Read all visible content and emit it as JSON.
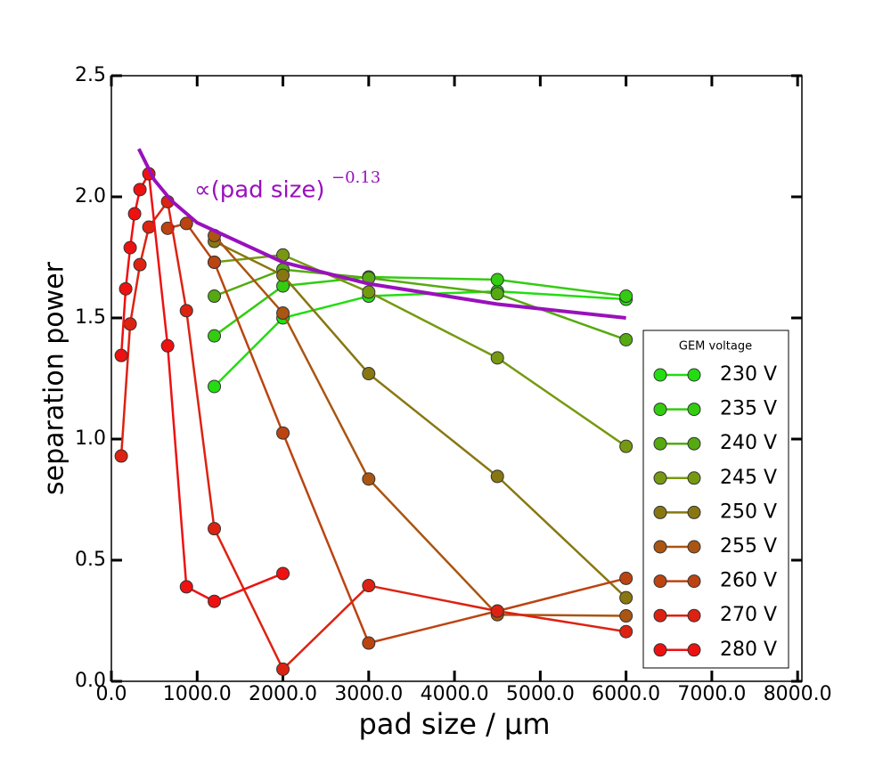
{
  "chart_data": {
    "type": "line",
    "xlabel": "pad size / μm",
    "ylabel": "separation power",
    "xlim": [
      0,
      8050
    ],
    "ylim": [
      0,
      2.5
    ],
    "xticks": [
      {
        "value": 0,
        "label": "0.0"
      },
      {
        "value": 1000,
        "label": "1000.0"
      },
      {
        "value": 2000,
        "label": "2000.0"
      },
      {
        "value": 3000,
        "label": "3000.0"
      },
      {
        "value": 4000,
        "label": "4000.0"
      },
      {
        "value": 5000,
        "label": "5000.0"
      },
      {
        "value": 6000,
        "label": "6000.0"
      },
      {
        "value": 7000,
        "label": "7000.0"
      },
      {
        "value": 8000,
        "label": "8000.0"
      }
    ],
    "yticks": [
      {
        "value": 0,
        "label": "0.0"
      },
      0.5,
      {
        "value": 1,
        "label": "1.0"
      },
      1.5,
      {
        "value": 2,
        "label": "2.0"
      },
      2.5
    ],
    "legend_title": "GEM voltage",
    "legend_position": "lower right",
    "series": [
      {
        "name": "230 V",
        "color": "#22dd11",
        "x": [
          1200,
          2000,
          3000,
          4500,
          6000
        ],
        "values": [
          1.217,
          1.5,
          1.59,
          1.61,
          1.577
        ]
      },
      {
        "name": "235 V",
        "color": "#33cc11",
        "x": [
          1200,
          2000,
          3000,
          4500,
          6000
        ],
        "values": [
          1.426,
          1.632,
          1.669,
          1.658,
          1.59
        ]
      },
      {
        "name": "240 V",
        "color": "#55aa11",
        "x": [
          1200,
          2000,
          3000,
          4500,
          6000
        ],
        "values": [
          1.59,
          1.7,
          1.665,
          1.6,
          1.41
        ]
      },
      {
        "name": "245 V",
        "color": "#779911",
        "x": [
          1200,
          2000,
          3000,
          4500,
          6000
        ],
        "values": [
          1.73,
          1.76,
          1.607,
          1.335,
          0.97
        ]
      },
      {
        "name": "250 V",
        "color": "#887711",
        "x": [
          1200,
          2000,
          3000,
          4500,
          6000
        ],
        "values": [
          1.816,
          1.676,
          1.27,
          0.846,
          0.345
        ]
      },
      {
        "name": "255 V",
        "color": "#aa5511",
        "x": [
          1200,
          2000,
          3000,
          4500,
          6000
        ],
        "values": [
          1.84,
          1.52,
          0.835,
          0.275,
          0.27
        ]
      },
      {
        "name": "260 V",
        "color": "#bb4411",
        "x": [
          656,
          875,
          1200,
          2000,
          3000,
          4500,
          6000
        ],
        "values": [
          1.87,
          1.89,
          1.73,
          1.025,
          0.158,
          0.29,
          0.425
        ]
      },
      {
        "name": "270 V",
        "color": "#dd2211",
        "x": [
          115,
          219,
          333,
          437,
          656,
          875,
          1200,
          2000,
          3000,
          4500,
          6000
        ],
        "values": [
          0.93,
          1.475,
          1.72,
          1.875,
          1.98,
          1.53,
          0.63,
          0.05,
          0.395,
          0.29,
          0.205
        ]
      },
      {
        "name": "280 V",
        "color": "#ee1111",
        "x": [
          115,
          167,
          219,
          271,
          333,
          437,
          656,
          875,
          1200,
          2000
        ],
        "values": [
          1.345,
          1.62,
          1.79,
          1.93,
          2.03,
          2.095,
          1.385,
          0.39,
          0.33,
          0.445
        ]
      }
    ],
    "fit": {
      "label": "∝(pad size)",
      "exponent_label": "−0.13",
      "color": "#9911bb",
      "x": [
        320,
        500,
        700,
        1000,
        2000,
        3000,
        4500,
        6000
      ],
      "values": [
        2.198,
        2.07,
        1.984,
        1.893,
        1.73,
        1.641,
        1.557,
        1.5
      ]
    }
  }
}
